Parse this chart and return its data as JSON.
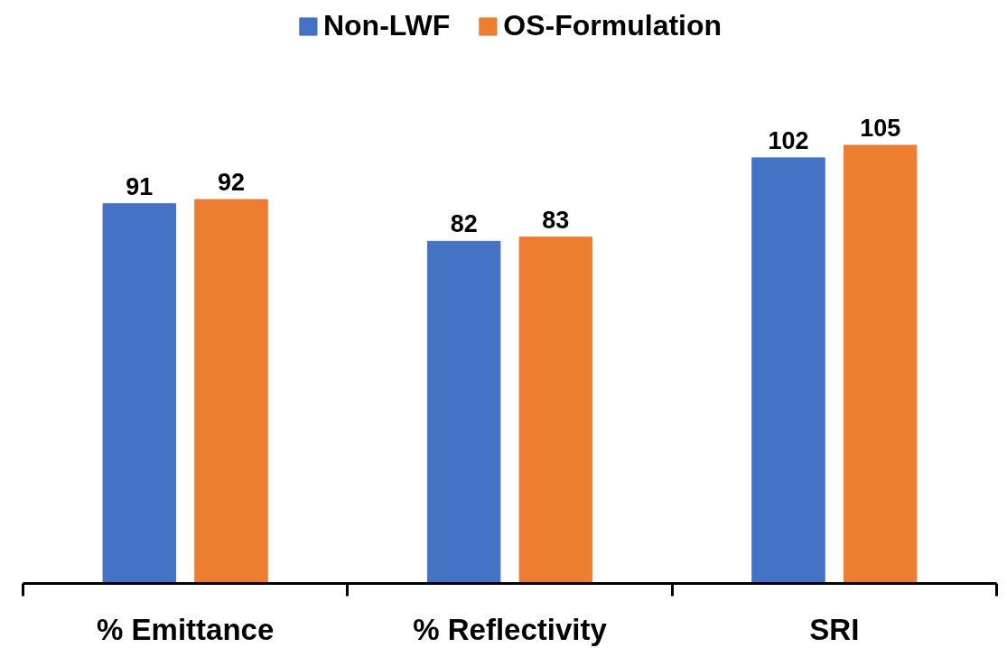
{
  "chart_data": {
    "type": "bar",
    "categories": [
      "% Emittance",
      "% Reflectivity",
      "SRI"
    ],
    "series": [
      {
        "name": "Non-LWF",
        "color": "#4472c4",
        "values": [
          91,
          82,
          102
        ]
      },
      {
        "name": "OS-Formulation",
        "color": "#ed7d31",
        "values": [
          92,
          83,
          105
        ]
      }
    ],
    "data_labels": true,
    "legend": "top",
    "grid": false
  }
}
